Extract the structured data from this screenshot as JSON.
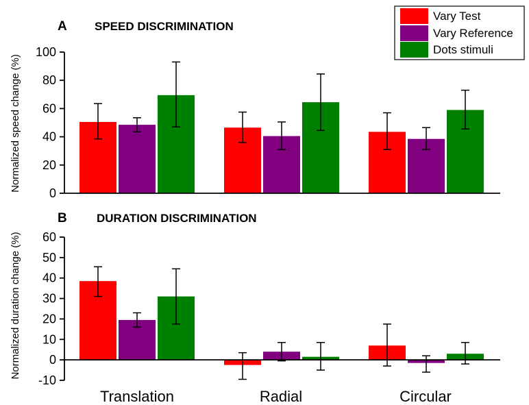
{
  "chart_data": [
    {
      "type": "bar",
      "panel": "A",
      "title": "SPEED DISCRIMINATION",
      "xlabel": "",
      "ylabel": "Normalized speed change (%)",
      "ylim": [
        0,
        100
      ],
      "yticks": [
        0,
        20,
        40,
        60,
        80,
        100
      ],
      "categories": [
        "Translation",
        "Radial",
        "Circular"
      ],
      "series": [
        {
          "name": "Vary Test",
          "color": "#ff0000",
          "values": [
            50.5,
            46.5,
            43.5
          ],
          "err_low": [
            38.5,
            36.0,
            31.0
          ],
          "err_high": [
            63.5,
            57.5,
            57.0
          ]
        },
        {
          "name": "Vary Reference",
          "color": "#800080",
          "values": [
            48.5,
            40.5,
            38.5
          ],
          "err_low": [
            43.5,
            31.0,
            31.0
          ],
          "err_high": [
            53.5,
            50.5,
            46.5
          ]
        },
        {
          "name": "Dots stimuli",
          "color": "#008000",
          "values": [
            69.5,
            64.5,
            59.0
          ],
          "err_low": [
            47.0,
            44.5,
            45.5
          ],
          "err_high": [
            93.0,
            84.5,
            73.0
          ]
        }
      ],
      "legend": "top-right",
      "grid": false
    },
    {
      "type": "bar",
      "panel": "B",
      "title": "DURATION DISCRIMINATION",
      "xlabel": "",
      "ylabel": "Normalized duration change (%)",
      "ylim": [
        -10,
        60
      ],
      "yticks": [
        -10,
        0,
        10,
        20,
        30,
        40,
        50,
        60
      ],
      "categories": [
        "Translation",
        "Radial",
        "Circular"
      ],
      "series": [
        {
          "name": "Vary Test",
          "color": "#ff0000",
          "values": [
            38.5,
            -2.5,
            7.0
          ],
          "err_low": [
            31.0,
            -9.5,
            -3.0
          ],
          "err_high": [
            45.5,
            3.5,
            17.5
          ]
        },
        {
          "name": "Vary Reference",
          "color": "#800080",
          "values": [
            19.5,
            4.0,
            -1.5
          ],
          "err_low": [
            16.0,
            -0.5,
            -6.0
          ],
          "err_high": [
            23.0,
            8.5,
            2.0
          ]
        },
        {
          "name": "Dots stimuli",
          "color": "#008000",
          "values": [
            31.0,
            1.5,
            3.0
          ],
          "err_low": [
            17.5,
            -5.0,
            -2.0
          ],
          "err_high": [
            44.5,
            8.5,
            8.5
          ]
        }
      ],
      "grid": false
    }
  ]
}
